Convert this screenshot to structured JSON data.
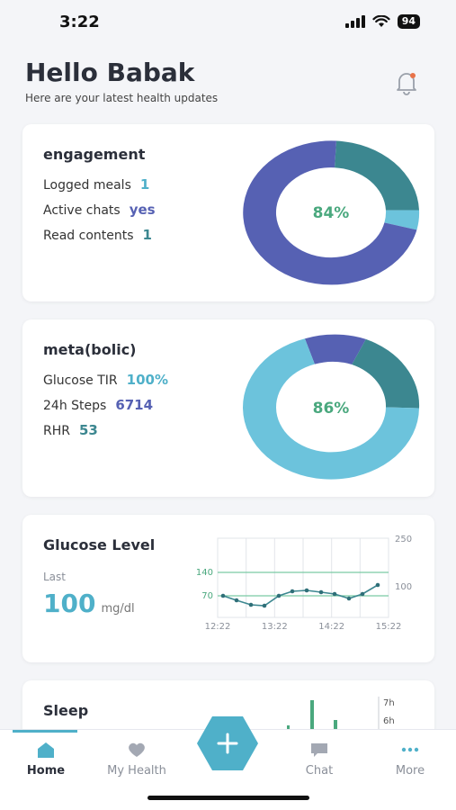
{
  "status": {
    "time": "3:22",
    "battery": "94"
  },
  "greeting": {
    "title": "Hello Babak",
    "subtitle": "Here are your latest health updates"
  },
  "engagement": {
    "title": "engagement",
    "rows": [
      {
        "label": "Logged meals",
        "value": "1"
      },
      {
        "label": "Active chats",
        "value": "yes"
      },
      {
        "label": "Read contents",
        "value": "1"
      }
    ],
    "percent": "84%"
  },
  "metabolic": {
    "title": "meta(bolic)",
    "rows": [
      {
        "label": "Glucose TIR",
        "value": "100%"
      },
      {
        "label": "24h Steps",
        "value": "6714"
      },
      {
        "label": "RHR",
        "value": "53"
      }
    ],
    "percent": "86%"
  },
  "glucose": {
    "title": "Glucose Level",
    "last_label": "Last",
    "value": "100",
    "unit": "mg/dl",
    "chart": {
      "x_ticks": [
        "12:22",
        "13:22",
        "14:22",
        "15:22"
      ],
      "y_left_ticks": [
        "140",
        "70"
      ],
      "y_right_ticks": [
        "250",
        "100"
      ]
    }
  },
  "sleep": {
    "title": "Sleep",
    "y_ticks": [
      "7h",
      "6h"
    ]
  },
  "tabs": {
    "home": "Home",
    "my_health": "My Health",
    "chat": "Chat",
    "more": "More"
  },
  "colors": {
    "accent": "#4fb0c9",
    "indigo": "#5661b3",
    "teal": "#3c8790",
    "sky": "#6cc3dc",
    "green": "#4aa87e"
  }
}
